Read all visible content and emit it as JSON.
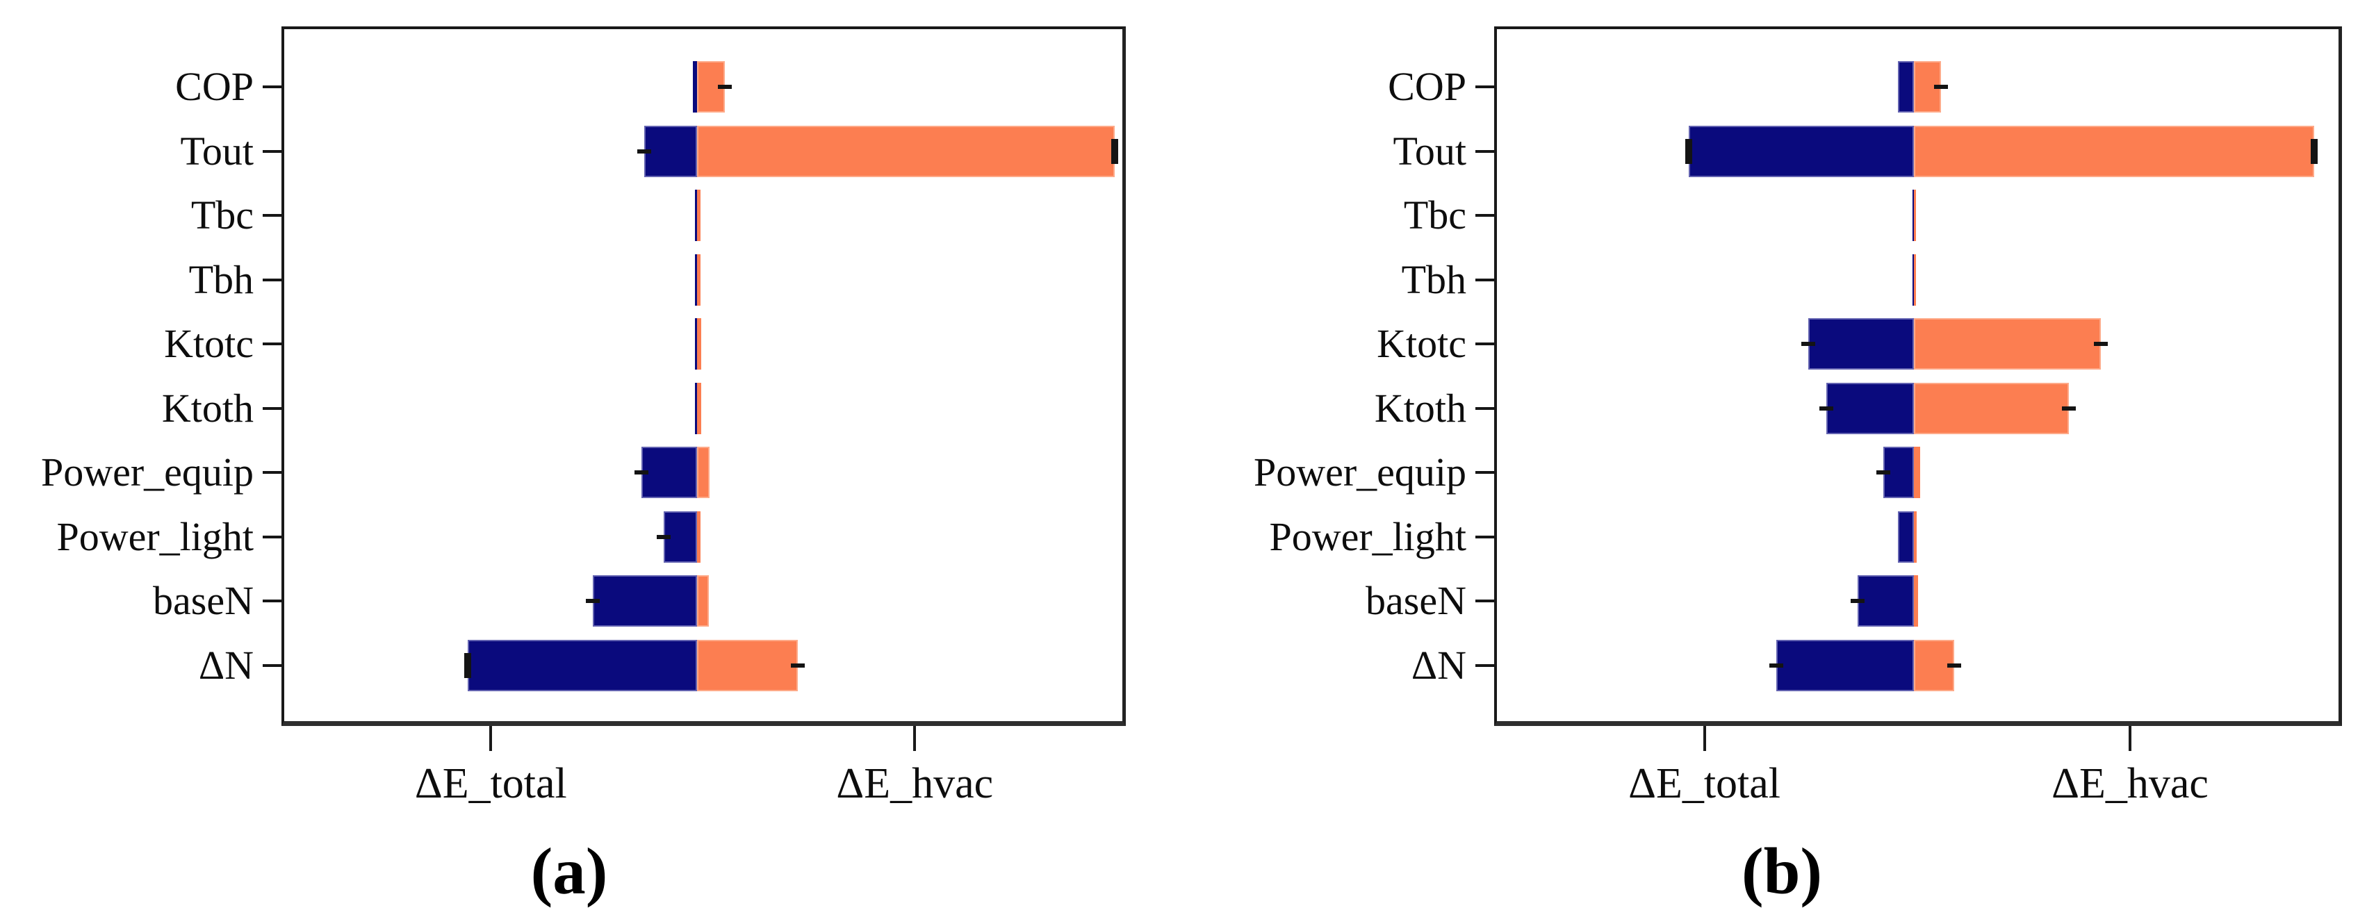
{
  "page": {
    "background": "#ffffff"
  },
  "colors": {
    "total_bar": "#0a0a7d",
    "hvac_bar": "#fc7e51",
    "axis": "#191919",
    "error_cap": "#141414",
    "text": "#0d0d0d"
  },
  "chart_data": [
    {
      "type": "bar",
      "orientation": "horizontal-diverging",
      "title": "(a)",
      "categories": [
        "COP",
        "Tout",
        "Tbc",
        "Tbh",
        "Ktotc",
        "Ktoth",
        "Power_equip",
        "Power_light",
        "baseN",
        "ΔN"
      ],
      "series": [
        {
          "name": "ΔE_total",
          "side": "left",
          "color": "#0a0a7d",
          "values": [
            0.01,
            0.125,
            0.005,
            0.005,
            0.005,
            0.005,
            0.131,
            0.079,
            0.246,
            0.541
          ],
          "error_caps": [
            0,
            1,
            0,
            0,
            0,
            0,
            1,
            1,
            1,
            2
          ]
        },
        {
          "name": "ΔE_hvac",
          "side": "right",
          "color": "#fc7e51",
          "values": [
            0.066,
            0.985,
            0.008,
            0.008,
            0.01,
            0.01,
            0.03,
            0.008,
            0.028,
            0.238
          ],
          "error_caps": [
            1,
            2,
            0,
            0,
            0,
            0,
            0,
            0,
            0,
            1
          ]
        }
      ],
      "x_axis": {
        "tick_labels": [
          "ΔE_total",
          "ΔE_hvac"
        ],
        "numeric_ticks": false
      },
      "grid": false,
      "legend": "none",
      "value_units": "relative sensitivity (axis half-width = 1)"
    },
    {
      "type": "bar",
      "orientation": "horizontal-diverging",
      "title": "(b)",
      "categories": [
        "COP",
        "Tout",
        "Tbc",
        "Tbh",
        "Ktotc",
        "Ktoth",
        "Power_equip",
        "Power_light",
        "baseN",
        "ΔN"
      ],
      "series": [
        {
          "name": "ΔE_total",
          "side": "left",
          "color": "#0a0a7d",
          "values": [
            0.038,
            0.531,
            0.003,
            0.003,
            0.249,
            0.207,
            0.072,
            0.038,
            0.133,
            0.325
          ],
          "error_caps": [
            0,
            2,
            0,
            0,
            1,
            1,
            1,
            0,
            1,
            1
          ]
        },
        {
          "name": "ΔE_hvac",
          "side": "right",
          "color": "#fc7e51",
          "values": [
            0.064,
            0.944,
            0.004,
            0.004,
            0.441,
            0.366,
            0.015,
            0.006,
            0.01,
            0.095
          ],
          "error_caps": [
            1,
            2,
            0,
            0,
            1,
            1,
            0,
            0,
            0,
            1
          ]
        }
      ],
      "x_axis": {
        "tick_labels": [
          "ΔE_total",
          "ΔE_hvac"
        ],
        "numeric_ticks": false
      },
      "grid": false,
      "legend": "none",
      "value_units": "relative sensitivity (axis half-width = 1)"
    }
  ]
}
